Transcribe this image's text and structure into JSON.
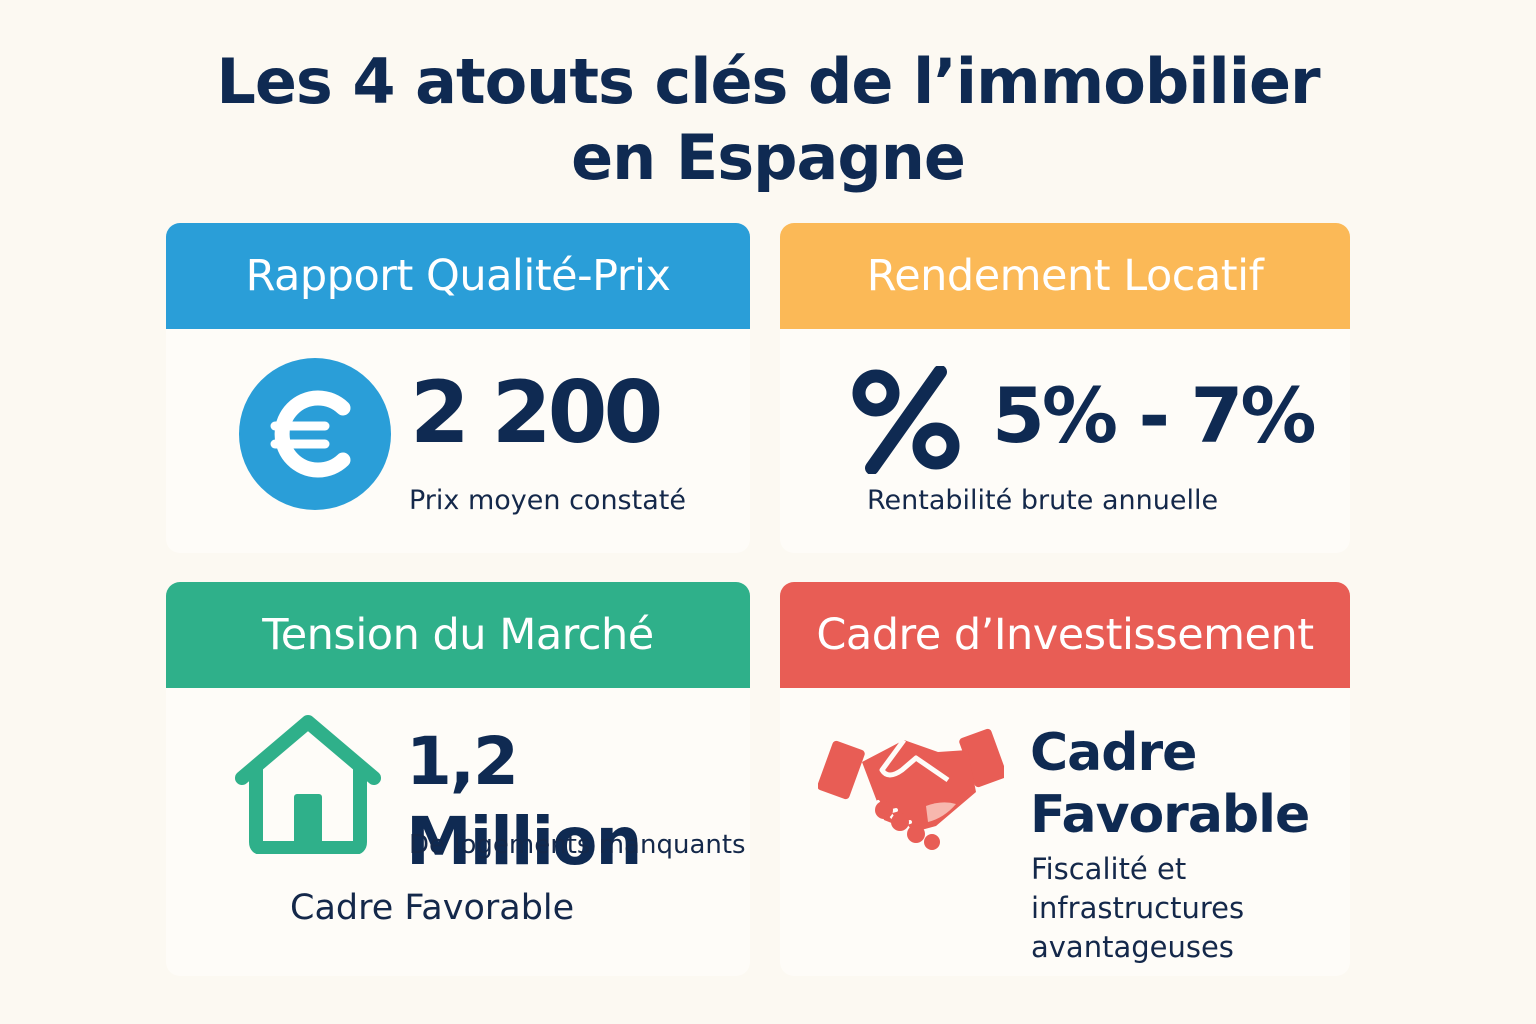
{
  "title": {
    "line1": "Les 4 atouts clés de l’immobilier",
    "line2": "en Espagne"
  },
  "cards": [
    {
      "header": "Rapport Qualité-Prix",
      "color": "#2a9ed8",
      "icon": "euro-icon",
      "stat": "2 200",
      "description": "Prix moyen constaté"
    },
    {
      "header": "Rendement Locatif",
      "color": "#fbb957",
      "icon": "percent-icon",
      "stat": "5% - 7%",
      "description": "Rentabilité brute annuelle"
    },
    {
      "header": "Tension du Marché",
      "color": "#2fb08a",
      "icon": "house-icon",
      "stat": "1,2 Million",
      "description": "De logements manquants",
      "extra": "Cadre Favorable"
    },
    {
      "header": "Cadre d’Investissement",
      "color": "#e85d55",
      "icon": "handshake-icon",
      "stat_line1": "Cadre",
      "stat_line2": "Favorable",
      "description_lines": [
        "Fiscalité et",
        "infrastructures",
        "avantageuses"
      ]
    }
  ]
}
